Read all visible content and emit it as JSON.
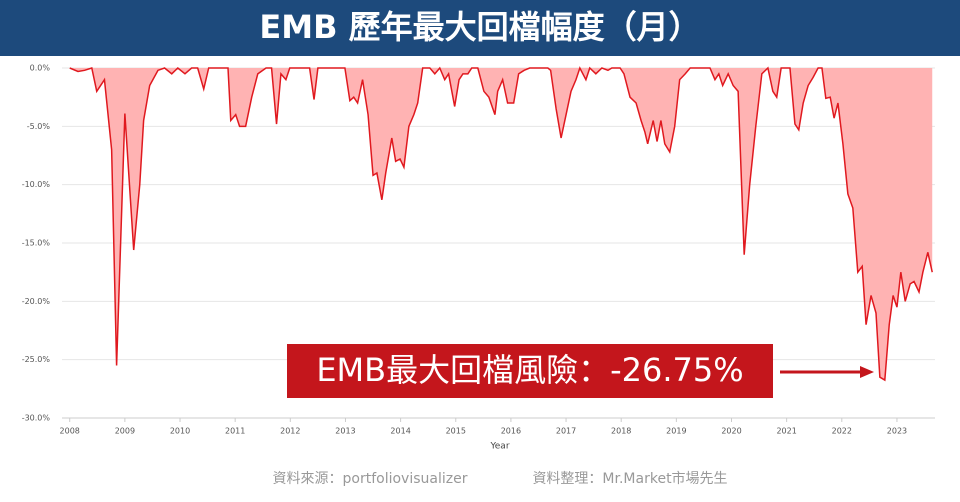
{
  "chart_data": {
    "type": "area",
    "title": "EMB 歷年最大回檔幅度（月）",
    "xlabel": "Year",
    "annotation": "EMB最大回檔風險：-26.75%",
    "source_note": "資料來源：portfoliovisualizer",
    "credit_note": "資料整理：Mr.Market市場先生",
    "color": "#e0191f",
    "fill": "#ffb3b3",
    "grid": true,
    "xlim": [
      2007.86,
      2023.69
    ],
    "xticks": [
      2008,
      2009,
      2010,
      2011,
      2012,
      2013,
      2014,
      2015,
      2016,
      2017,
      2018,
      2019,
      2020,
      2021,
      2022,
      2023
    ],
    "ylim": [
      -30,
      0
    ],
    "yticks": [
      {
        "value": 0,
        "label": "0.0%"
      },
      {
        "value": -5,
        "label": "-5.0%"
      },
      {
        "value": -10,
        "label": "-10.0%"
      },
      {
        "value": -15,
        "label": "-15.0%"
      },
      {
        "value": -20,
        "label": "-20.0%"
      },
      {
        "value": -25,
        "label": "-25.0%"
      },
      {
        "value": -30,
        "label": "-30.0%"
      }
    ],
    "x": [
      2008.0,
      2008.15,
      2008.27,
      2008.4,
      2008.49,
      2008.63,
      2008.76,
      2008.85,
      2009.0,
      2009.16,
      2009.27,
      2009.34,
      2009.45,
      2009.6,
      2009.72,
      2009.85,
      2009.96,
      2010.09,
      2010.21,
      2010.32,
      2010.43,
      2010.52,
      2010.87,
      2010.92,
      2011.01,
      2011.08,
      2011.19,
      2011.3,
      2011.41,
      2011.56,
      2011.66,
      2011.75,
      2011.83,
      2011.92,
      2011.99,
      2012.35,
      2012.43,
      2012.5,
      2012.99,
      2013.08,
      2013.15,
      2013.22,
      2013.31,
      2013.41,
      2013.5,
      2013.57,
      2013.66,
      2013.73,
      2013.84,
      2013.91,
      2013.99,
      2014.06,
      2014.15,
      2014.24,
      2014.31,
      2014.4,
      2014.53,
      2014.62,
      2014.71,
      2014.8,
      2014.87,
      2014.98,
      2015.06,
      2015.13,
      2015.22,
      2015.29,
      2015.4,
      2015.51,
      2015.6,
      2015.71,
      2015.76,
      2015.85,
      2015.94,
      2016.05,
      2016.14,
      2016.24,
      2016.34,
      2016.67,
      2016.72,
      2016.82,
      2016.91,
      2017.0,
      2017.09,
      2017.18,
      2017.25,
      2017.36,
      2017.43,
      2017.54,
      2017.65,
      2017.76,
      2017.83,
      2017.98,
      2018.05,
      2018.16,
      2018.27,
      2018.36,
      2018.43,
      2018.48,
      2018.58,
      2018.65,
      2018.72,
      2018.79,
      2018.88,
      2018.97,
      2019.06,
      2019.16,
      2019.25,
      2019.61,
      2019.7,
      2019.77,
      2019.84,
      2019.94,
      2020.03,
      2020.12,
      2020.23,
      2020.33,
      2020.44,
      2020.55,
      2020.66,
      2020.75,
      2020.82,
      2020.9,
      2021.06,
      2021.15,
      2021.22,
      2021.3,
      2021.39,
      2021.48,
      2021.57,
      2021.64,
      2021.71,
      2021.79,
      2021.86,
      2021.93,
      2022.02,
      2022.11,
      2022.2,
      2022.29,
      2022.37,
      2022.44,
      2022.53,
      2022.62,
      2022.69,
      2022.78,
      2022.86,
      2022.93,
      2023.0,
      2023.07,
      2023.15,
      2023.24,
      2023.31,
      2023.4,
      2023.47,
      2023.56,
      2023.64
    ],
    "values": [
      0,
      -0.3,
      -0.2,
      0,
      -2,
      -1,
      -7,
      -25.5,
      -3.9,
      -15.6,
      -10,
      -4.5,
      -1.5,
      -0.2,
      0,
      -0.5,
      0,
      -0.5,
      0,
      0,
      -1.8,
      0,
      0,
      -4.5,
      -4,
      -5,
      -5,
      -2.5,
      -0.5,
      0,
      0,
      -4.8,
      -0.5,
      -1,
      0,
      0,
      -2.7,
      0,
      0,
      -2.8,
      -2.5,
      -3,
      -1,
      -4,
      -9.2,
      -9,
      -11.3,
      -9,
      -6,
      -8,
      -7.8,
      -8.5,
      -5,
      -4,
      -3,
      0,
      0,
      -0.5,
      0,
      -1,
      -0.5,
      -3.3,
      -1,
      -0.5,
      -0.5,
      0,
      0,
      -2,
      -2.5,
      -4,
      -2,
      -1,
      -3,
      -3,
      -0.5,
      -0.2,
      0,
      0,
      -0.2,
      -3.5,
      -6,
      -4,
      -2,
      -1,
      0,
      -1,
      0,
      -0.5,
      0,
      -0.2,
      0,
      0,
      -0.5,
      -2.5,
      -3,
      -4.5,
      -5.5,
      -6.5,
      -4.5,
      -6.3,
      -4.5,
      -6.5,
      -7.2,
      -5,
      -1,
      -0.5,
      0,
      0,
      -1,
      -0.5,
      -1.5,
      -0.5,
      -1.5,
      -2,
      -16,
      -10,
      -5,
      -0.5,
      0,
      -2,
      -2.5,
      0,
      0,
      -4.8,
      -5.3,
      -3,
      -1.5,
      -0.8,
      0,
      0,
      -2.6,
      -2.5,
      -4.3,
      -3,
      -6.5,
      -10.8,
      -12,
      -17.5,
      -17,
      -22,
      -19.5,
      -21,
      -26.5,
      -26.75,
      -22,
      -19.5,
      -20.5,
      -17.5,
      -20,
      -18.5,
      -18.3,
      -19.2,
      -17.5,
      -15.8,
      -17.5
    ]
  }
}
